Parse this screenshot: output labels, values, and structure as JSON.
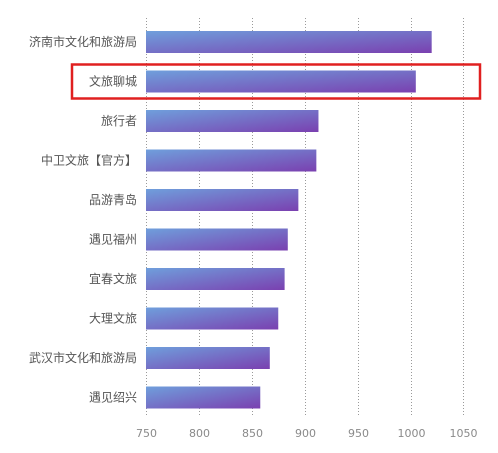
{
  "chart_data": {
    "type": "bar",
    "orientation": "horizontal",
    "categories": [
      "济南市文化和旅游局",
      "文旅聊城",
      "旅行者",
      "中卫文旅【官方】",
      "品游青岛",
      "遇见福州",
      "宜春文旅",
      "大理文旅",
      "武汉市文化和旅游局",
      "遇见绍兴"
    ],
    "values": [
      1020,
      1005,
      913,
      911,
      894,
      884,
      881,
      875,
      867,
      858
    ],
    "xlim": [
      750,
      1060
    ],
    "xticks": [
      750,
      800,
      850,
      900,
      950,
      1000,
      1050
    ],
    "title": "",
    "xlabel": "",
    "ylabel": "",
    "grid": "vertical-dotted",
    "highlight_index": 1,
    "colors": {
      "bar_start": "#6f9fdc",
      "bar_end": "#7a40b0",
      "highlight_box": "#e02020",
      "grid": "#9a9a9a",
      "label_text": "#555555",
      "tick_text": "#8a8a8a"
    }
  }
}
